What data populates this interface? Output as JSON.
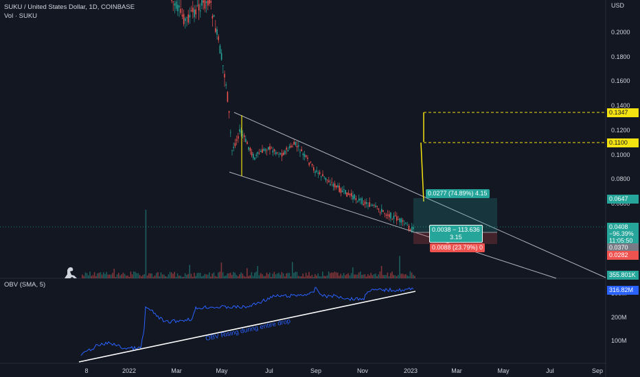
{
  "header": {
    "symbol": "SUKU / United States Dollar, 1D, COINBASE",
    "volume": "Vol · SUKU"
  },
  "obv_title": "OBV (SMA, 5)",
  "obv_annotation": "OBV Rising during entire drop",
  "price_axis": {
    "currency": "USD",
    "ticks": [
      "0.2000",
      "0.1800",
      "0.1600",
      "0.1400",
      "0.1200",
      "0.1000",
      "0.0800",
      "0.0600"
    ]
  },
  "obv_axis": {
    "ticks": [
      "300M",
      "200M",
      "100M"
    ]
  },
  "time_axis": {
    "ticks": [
      "8",
      "2022",
      "Mar",
      "May",
      "Jul",
      "Sep",
      "Nov",
      "2023",
      "Mar",
      "May",
      "Jul",
      "Sep"
    ]
  },
  "axis_tags": {
    "target2": "0.1347",
    "target1": "0.1100",
    "stop_zone_top": "0.0647",
    "last_price": "0.0408",
    "change": "−96.39%",
    "countdown": "11:05:50",
    "entry": "0.0370",
    "stop": "0.0282",
    "volume": "355.801K",
    "obv": "316.82M"
  },
  "position": {
    "profit_label": "0.0277 (74.89%) 4.15",
    "center_line1": "0.0038 − 113.636",
    "center_line2": "3.15",
    "loss_label": "0.0088 (23.79%) 0"
  },
  "colors": {
    "background": "#131722",
    "up": "#26a69a",
    "down": "#ef5350",
    "target_yellow": "#f5e211",
    "obv_line": "#2962ff"
  }
}
